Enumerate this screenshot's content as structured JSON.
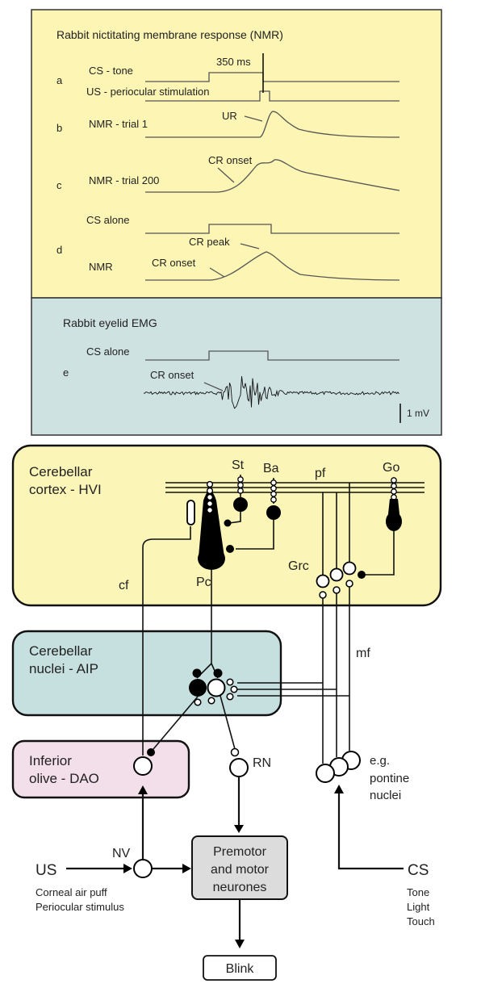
{
  "panel_top": {
    "title": "Rabbit nictitating membrane response (NMR)",
    "row_a": {
      "letter": "a",
      "cs_label": "CS - tone",
      "us_label": "US - periocular stimulation",
      "duration": "350 ms"
    },
    "row_b": {
      "letter": "b",
      "label": "NMR - trial 1",
      "ur": "UR"
    },
    "row_c": {
      "letter": "c",
      "label": "NMR - trial 200",
      "cr_onset": "CR onset"
    },
    "row_d": {
      "letter": "d",
      "cs_alone": "CS alone",
      "nmr": "NMR",
      "cr_peak": "CR peak",
      "cr_onset": "CR onset"
    },
    "bg": "#fcf5b3"
  },
  "panel_emg": {
    "title": "Rabbit eyelid EMG",
    "letter": "e",
    "cs_alone": "CS alone",
    "cr_onset": "CR onset",
    "scale": "1 mV",
    "bg": "#cfe2e2"
  },
  "circuit": {
    "cortex": {
      "line1": "Cerebellar",
      "line2": "cortex - HVI",
      "bg": "#fcf5b8"
    },
    "nuclei": {
      "line1": "Cerebellar",
      "line2": "nuclei - AIP",
      "bg": "#c6e0e0"
    },
    "olive": {
      "line1": "Inferior",
      "line2": "olive - DAO",
      "bg": "#f3dfe9"
    },
    "cells": {
      "st": "St",
      "ba": "Ba",
      "pf": "pf",
      "go": "Go",
      "pc": "Pc",
      "grc": "Grc",
      "cf": "cf",
      "mf": "mf",
      "rn": "RN",
      "nv": "NV"
    },
    "pontine": {
      "line1": "e.g.",
      "line2": "pontine",
      "line3": "nuclei"
    },
    "us": {
      "label": "US",
      "desc1": "Corneal air puff",
      "desc2": "Periocular stimulus"
    },
    "cs": {
      "label": "CS",
      "desc1": "Tone",
      "desc2": "Light",
      "desc3": "Touch"
    },
    "premotor": {
      "line1": "Premotor",
      "line2": "and motor",
      "line3": "neurones",
      "bg": "#dcdcdc"
    },
    "blink": "Blink"
  }
}
